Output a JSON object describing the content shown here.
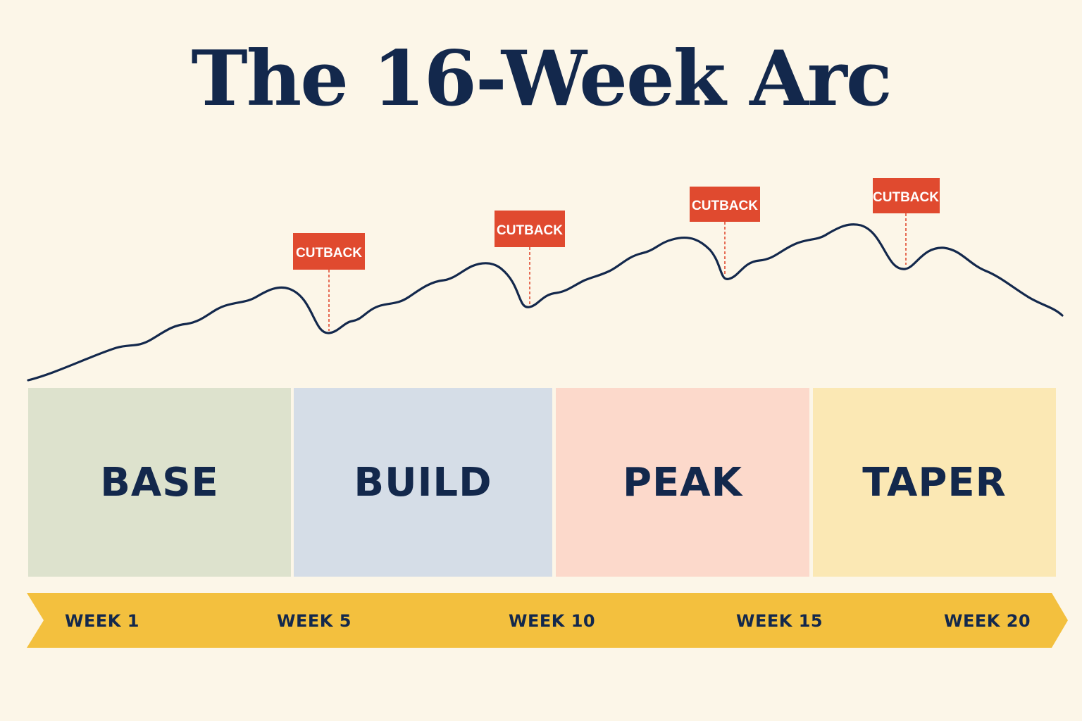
{
  "title": "The 16-Week Arc",
  "cutback_label": "CUTBACK",
  "phases": [
    {
      "label": "BASE",
      "color": "#dde2cd"
    },
    {
      "label": "BUILD",
      "color": "#d5dde7"
    },
    {
      "label": "PEAK",
      "color": "#fcd9cb"
    },
    {
      "label": "TAPER",
      "color": "#fbe8b4"
    }
  ],
  "timeline": {
    "color": "#f3c03e",
    "weeks": [
      "WEEK 1",
      "WEEK 5",
      "WEEK 10",
      "WEEK 15",
      "WEEK 20"
    ]
  },
  "colors": {
    "background": "#fcf6e8",
    "navy": "#13284c",
    "cutback_red": "#e04a2f"
  }
}
